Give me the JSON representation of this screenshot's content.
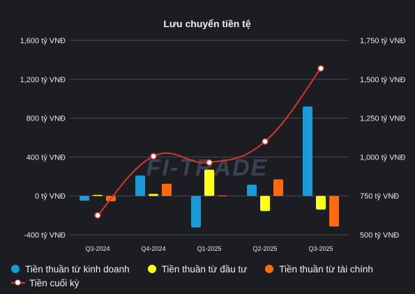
{
  "chart_data": {
    "type": "bar",
    "title": "Lưu chuyển tiền tệ",
    "categories": [
      "Q3-2024",
      "Q4-2024",
      "Q1-2025",
      "Q2-2025",
      "Q3-2025"
    ],
    "series": [
      {
        "name": "Tiền thuần từ kinh doanh",
        "axis": "left",
        "color": "#1a9bd7",
        "values": [
          -50,
          210,
          -325,
          115,
          920
        ]
      },
      {
        "name": "Tiền thuần từ đầu tư",
        "axis": "left",
        "color": "#ffff1a",
        "values": [
          10,
          20,
          270,
          -155,
          -140
        ]
      },
      {
        "name": "Tiền thuần từ tài chính",
        "axis": "left",
        "color": "#ff6a0d",
        "values": [
          -55,
          125,
          5,
          170,
          -315
        ]
      },
      {
        "name": "Tiền cuối kỳ",
        "axis": "right",
        "type": "line",
        "color": "#d8352e",
        "values": [
          625,
          1005,
          965,
          1100,
          1570
        ]
      }
    ],
    "y_left": {
      "ylim": [
        -400,
        1600
      ],
      "ticks": [
        -400,
        0,
        400,
        800,
        1200,
        1600
      ],
      "tick_labels": [
        "-400 tỷ VNĐ",
        "0 tỷ VNĐ",
        "400 tỷ VNĐ",
        "800 tỷ VNĐ",
        "1,200 tỷ VNĐ",
        "1,600 tỷ VNĐ"
      ]
    },
    "y_right": {
      "ylim": [
        500,
        1750
      ],
      "ticks": [
        500,
        750,
        1000,
        1250,
        1500,
        1750
      ],
      "tick_labels": [
        "500 tỷ VNĐ",
        "750 tỷ VNĐ",
        "1,000 tỷ VNĐ",
        "1,250 tỷ VNĐ",
        "1,500 tỷ VNĐ",
        "1,750 tỷ VNĐ"
      ]
    },
    "grid": true,
    "legend_position": "bottom"
  },
  "watermark": "FI-TRADE"
}
